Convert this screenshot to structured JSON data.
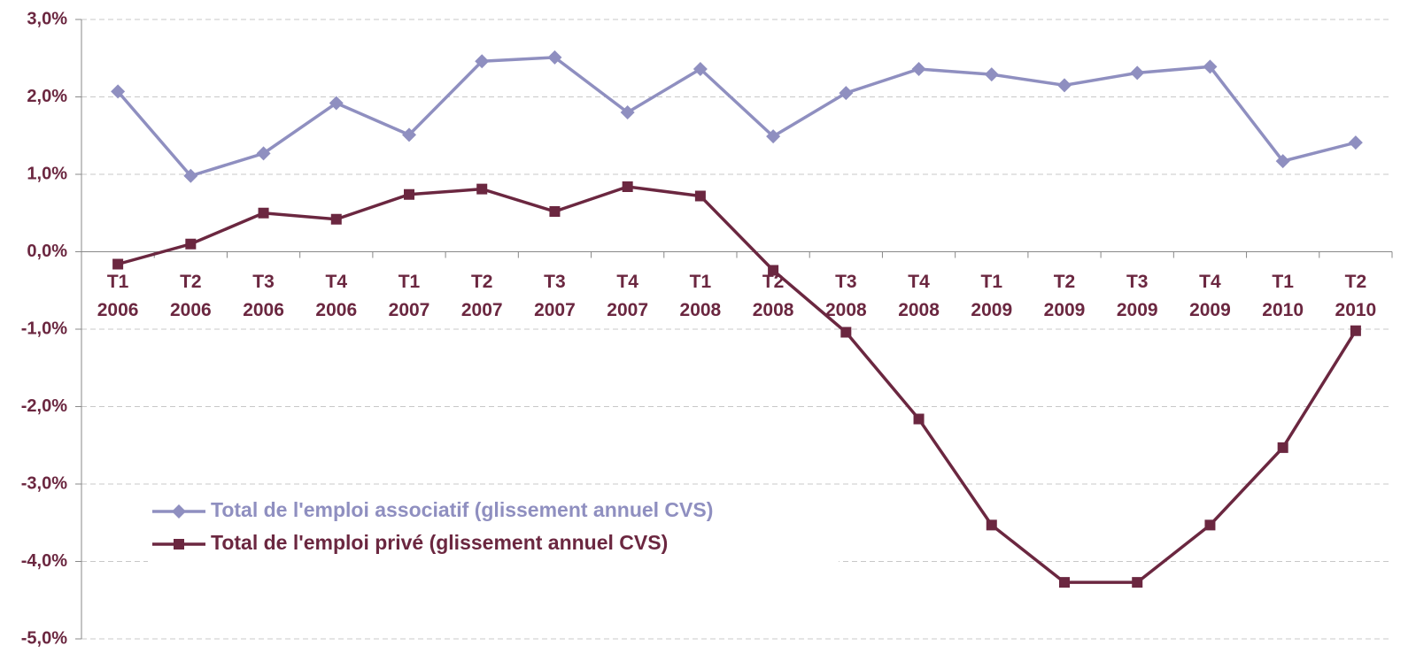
{
  "chart_data": {
    "type": "line",
    "categories": [
      [
        "T1",
        "2006"
      ],
      [
        "T2",
        "2006"
      ],
      [
        "T3",
        "2006"
      ],
      [
        "T4",
        "2006"
      ],
      [
        "T1",
        "2007"
      ],
      [
        "T2",
        "2007"
      ],
      [
        "T3",
        "2007"
      ],
      [
        "T4",
        "2007"
      ],
      [
        "T1",
        "2008"
      ],
      [
        "T2",
        "2008"
      ],
      [
        "T3",
        "2008"
      ],
      [
        "T4",
        "2008"
      ],
      [
        "T1",
        "2009"
      ],
      [
        "T2",
        "2009"
      ],
      [
        "T3",
        "2009"
      ],
      [
        "T4",
        "2009"
      ],
      [
        "T1",
        "2010"
      ],
      [
        "T2",
        "2010"
      ]
    ],
    "series": [
      {
        "name": "Total de l'emploi associatif (glissement annuel CVS)",
        "color": "#8f8fc0",
        "marker": "diamond",
        "values": [
          2.07,
          0.98,
          1.27,
          1.92,
          1.51,
          2.46,
          2.51,
          1.8,
          2.36,
          1.49,
          2.05,
          2.36,
          2.29,
          2.15,
          2.31,
          2.39,
          1.17,
          1.41
        ]
      },
      {
        "name": "Total de l'emploi privé (glissement annuel CVS)",
        "color": "#6b2740",
        "marker": "square",
        "values": [
          -0.16,
          0.1,
          0.5,
          0.42,
          0.74,
          0.81,
          0.52,
          0.84,
          0.72,
          -0.24,
          -1.04,
          -2.16,
          -3.53,
          -4.27,
          -4.27,
          -3.53,
          -2.53,
          -1.02
        ]
      }
    ],
    "ylim": [
      -5,
      3
    ],
    "yticks": [
      {
        "value": -5,
        "label": "-5,0%"
      },
      {
        "value": -4,
        "label": "-4,0%"
      },
      {
        "value": -3,
        "label": "-3,0%"
      },
      {
        "value": -2,
        "label": "-2,0%"
      },
      {
        "value": -1,
        "label": "-1,0%"
      },
      {
        "value": 0,
        "label": "0,0%"
      },
      {
        "value": 1,
        "label": "1,0%"
      },
      {
        "value": 2,
        "label": "2,0%"
      },
      {
        "value": 3,
        "label": "3,0%"
      }
    ],
    "grid": true,
    "legend": "lower left",
    "axis_color": "#6b2740"
  }
}
